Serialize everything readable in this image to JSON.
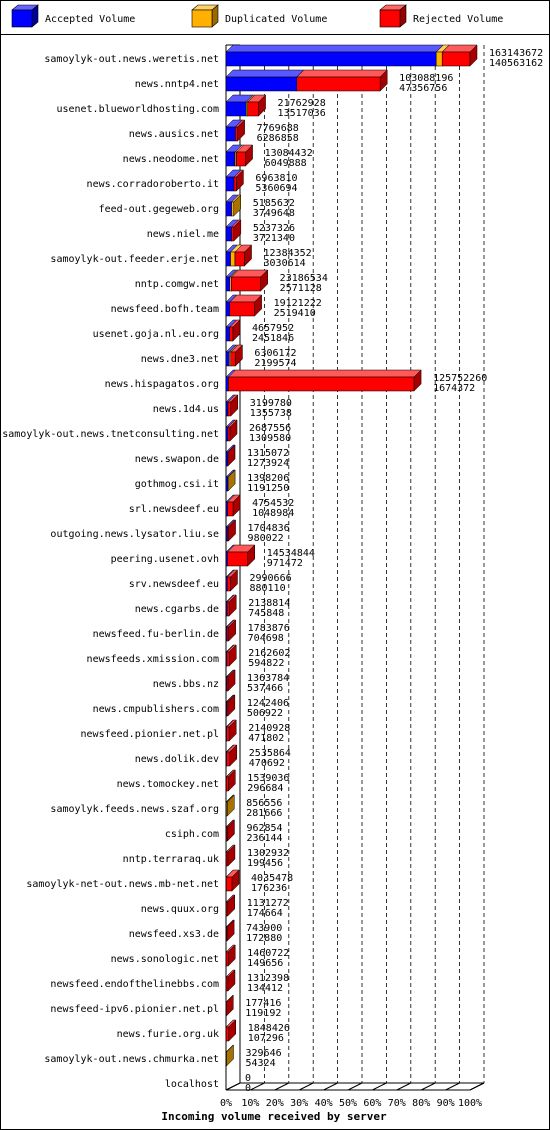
{
  "chart_data": {
    "type": "bar",
    "orientation": "horizontal",
    "stacked": true,
    "legend": "top",
    "grid": true,
    "xlabel": "Incoming volume received by server",
    "categories": [
      "samoylyk-out.news.weretis.net",
      "news.nntp4.net",
      "usenet.blueworldhosting.com",
      "news.ausics.net",
      "news.neodome.net",
      "news.corradoroberto.it",
      "feed-out.gegeweb.org",
      "news.niel.me",
      "samoylyk-out.feeder.erje.net",
      "nntp.comgw.net",
      "newsfeed.bofh.team",
      "usenet.goja.nl.eu.org",
      "news.dne3.net",
      "news.hispagatos.org",
      "news.1d4.us",
      "samoylyk-out.news.tnetconsulting.net",
      "news.swapon.de",
      "gothmog.csi.it",
      "srl.newsdeef.eu",
      "outgoing.news.lysator.liu.se",
      "peering.usenet.ovh",
      "srv.newsdeef.eu",
      "news.cgarbs.de",
      "newsfeed.fu-berlin.de",
      "newsfeeds.xmission.com",
      "news.bbs.nz",
      "news.cmpublishers.com",
      "newsfeed.pionier.net.pl",
      "news.dolik.dev",
      "news.tomockey.net",
      "samoylyk.feeds.news.szaf.org",
      "csiph.com",
      "nntp.terraraq.uk",
      "samoylyk-net-out.news.mb-net.net",
      "news.quux.org",
      "newsfeed.xs3.de",
      "news.sonologic.net",
      "newsfeed.endofthelinebbs.com",
      "newsfeed-ipv6.pionier.net.pl",
      "news.furie.org.uk",
      "samoylyk-out.news.chmurka.net",
      "localhost"
    ],
    "totals": [
      163143672,
      103088196,
      21762928,
      7769688,
      13084432,
      6963810,
      5185632,
      5237326,
      12384352,
      23186534,
      19121222,
      4657952,
      6306172,
      125752260,
      3199780,
      2687556,
      1315072,
      1398206,
      4754532,
      1704836,
      14534844,
      2990666,
      2138814,
      1783876,
      2162602,
      1363784,
      1242406,
      2140928,
      2535864,
      1539036,
      856556,
      962854,
      1302932,
      4035478,
      1131272,
      743900,
      1460722,
      1312398,
      177416,
      1848426,
      329646,
      0
    ],
    "series": [
      {
        "name": "Accepted Volume",
        "color": "#0000ff",
        "values": [
          140563162,
          47356756,
          13517036,
          6286858,
          6049888,
          5360694,
          3749648,
          3721340,
          3030614,
          2571128,
          2519410,
          2451846,
          2199574,
          1674372,
          1355738,
          1309580,
          1273924,
          1191250,
          1048984,
          980022,
          971472,
          880110,
          745848,
          704698,
          594822,
          537466,
          506922,
          471802,
          470692,
          296684,
          281666,
          236144,
          199456,
          176236,
          174664,
          172880,
          149656,
          134412,
          119192,
          107296,
          54324,
          0
        ]
      },
      {
        "name": "Duplicated Volume",
        "color": "#ffb000",
        "values": [
          4000000,
          0,
          1000000,
          0,
          1000000,
          0,
          1435984,
          0,
          3000000,
          1000000,
          0,
          0,
          1000000,
          0,
          0,
          0,
          0,
          206956,
          0,
          0,
          0,
          0,
          0,
          0,
          0,
          0,
          0,
          0,
          0,
          0,
          574890,
          0,
          0,
          0,
          0,
          0,
          0,
          0,
          0,
          0,
          275322,
          0
        ]
      },
      {
        "name": "Rejected Volume",
        "color": "#ff0000",
        "values": [
          18580510,
          55731440,
          7245892,
          1482830,
          6034544,
          1603116,
          0,
          1515986,
          6353738,
          19615406,
          16601812,
          2206106,
          3106598,
          124077888,
          1844042,
          1377976,
          41148,
          0,
          3705548,
          724814,
          13563372,
          2110556,
          1392966,
          1079178,
          1567780,
          826318,
          735484,
          1669126,
          2065172,
          1242352,
          0,
          726710,
          1103476,
          3859242,
          956608,
          571020,
          1311066,
          1177986,
          58224,
          1741130,
          0,
          0
        ]
      }
    ],
    "xlim": [
      0,
      163143672
    ],
    "xticks": [
      {
        "value": 0,
        "label": "0%"
      },
      {
        "value": 16314367.2,
        "label": "10%"
      },
      {
        "value": 32628734.4,
        "label": "20%"
      },
      {
        "value": 48943101.6,
        "label": "30%"
      },
      {
        "value": 65257468.8,
        "label": "40%"
      },
      {
        "value": 81571836,
        "label": "50%"
      },
      {
        "value": 97886203.2,
        "label": "60%"
      },
      {
        "value": 114200570.4,
        "label": "70%"
      },
      {
        "value": 130514937.6,
        "label": "80%"
      },
      {
        "value": 146829304.8,
        "label": "90%"
      },
      {
        "value": 163143672,
        "label": "100%"
      }
    ]
  }
}
